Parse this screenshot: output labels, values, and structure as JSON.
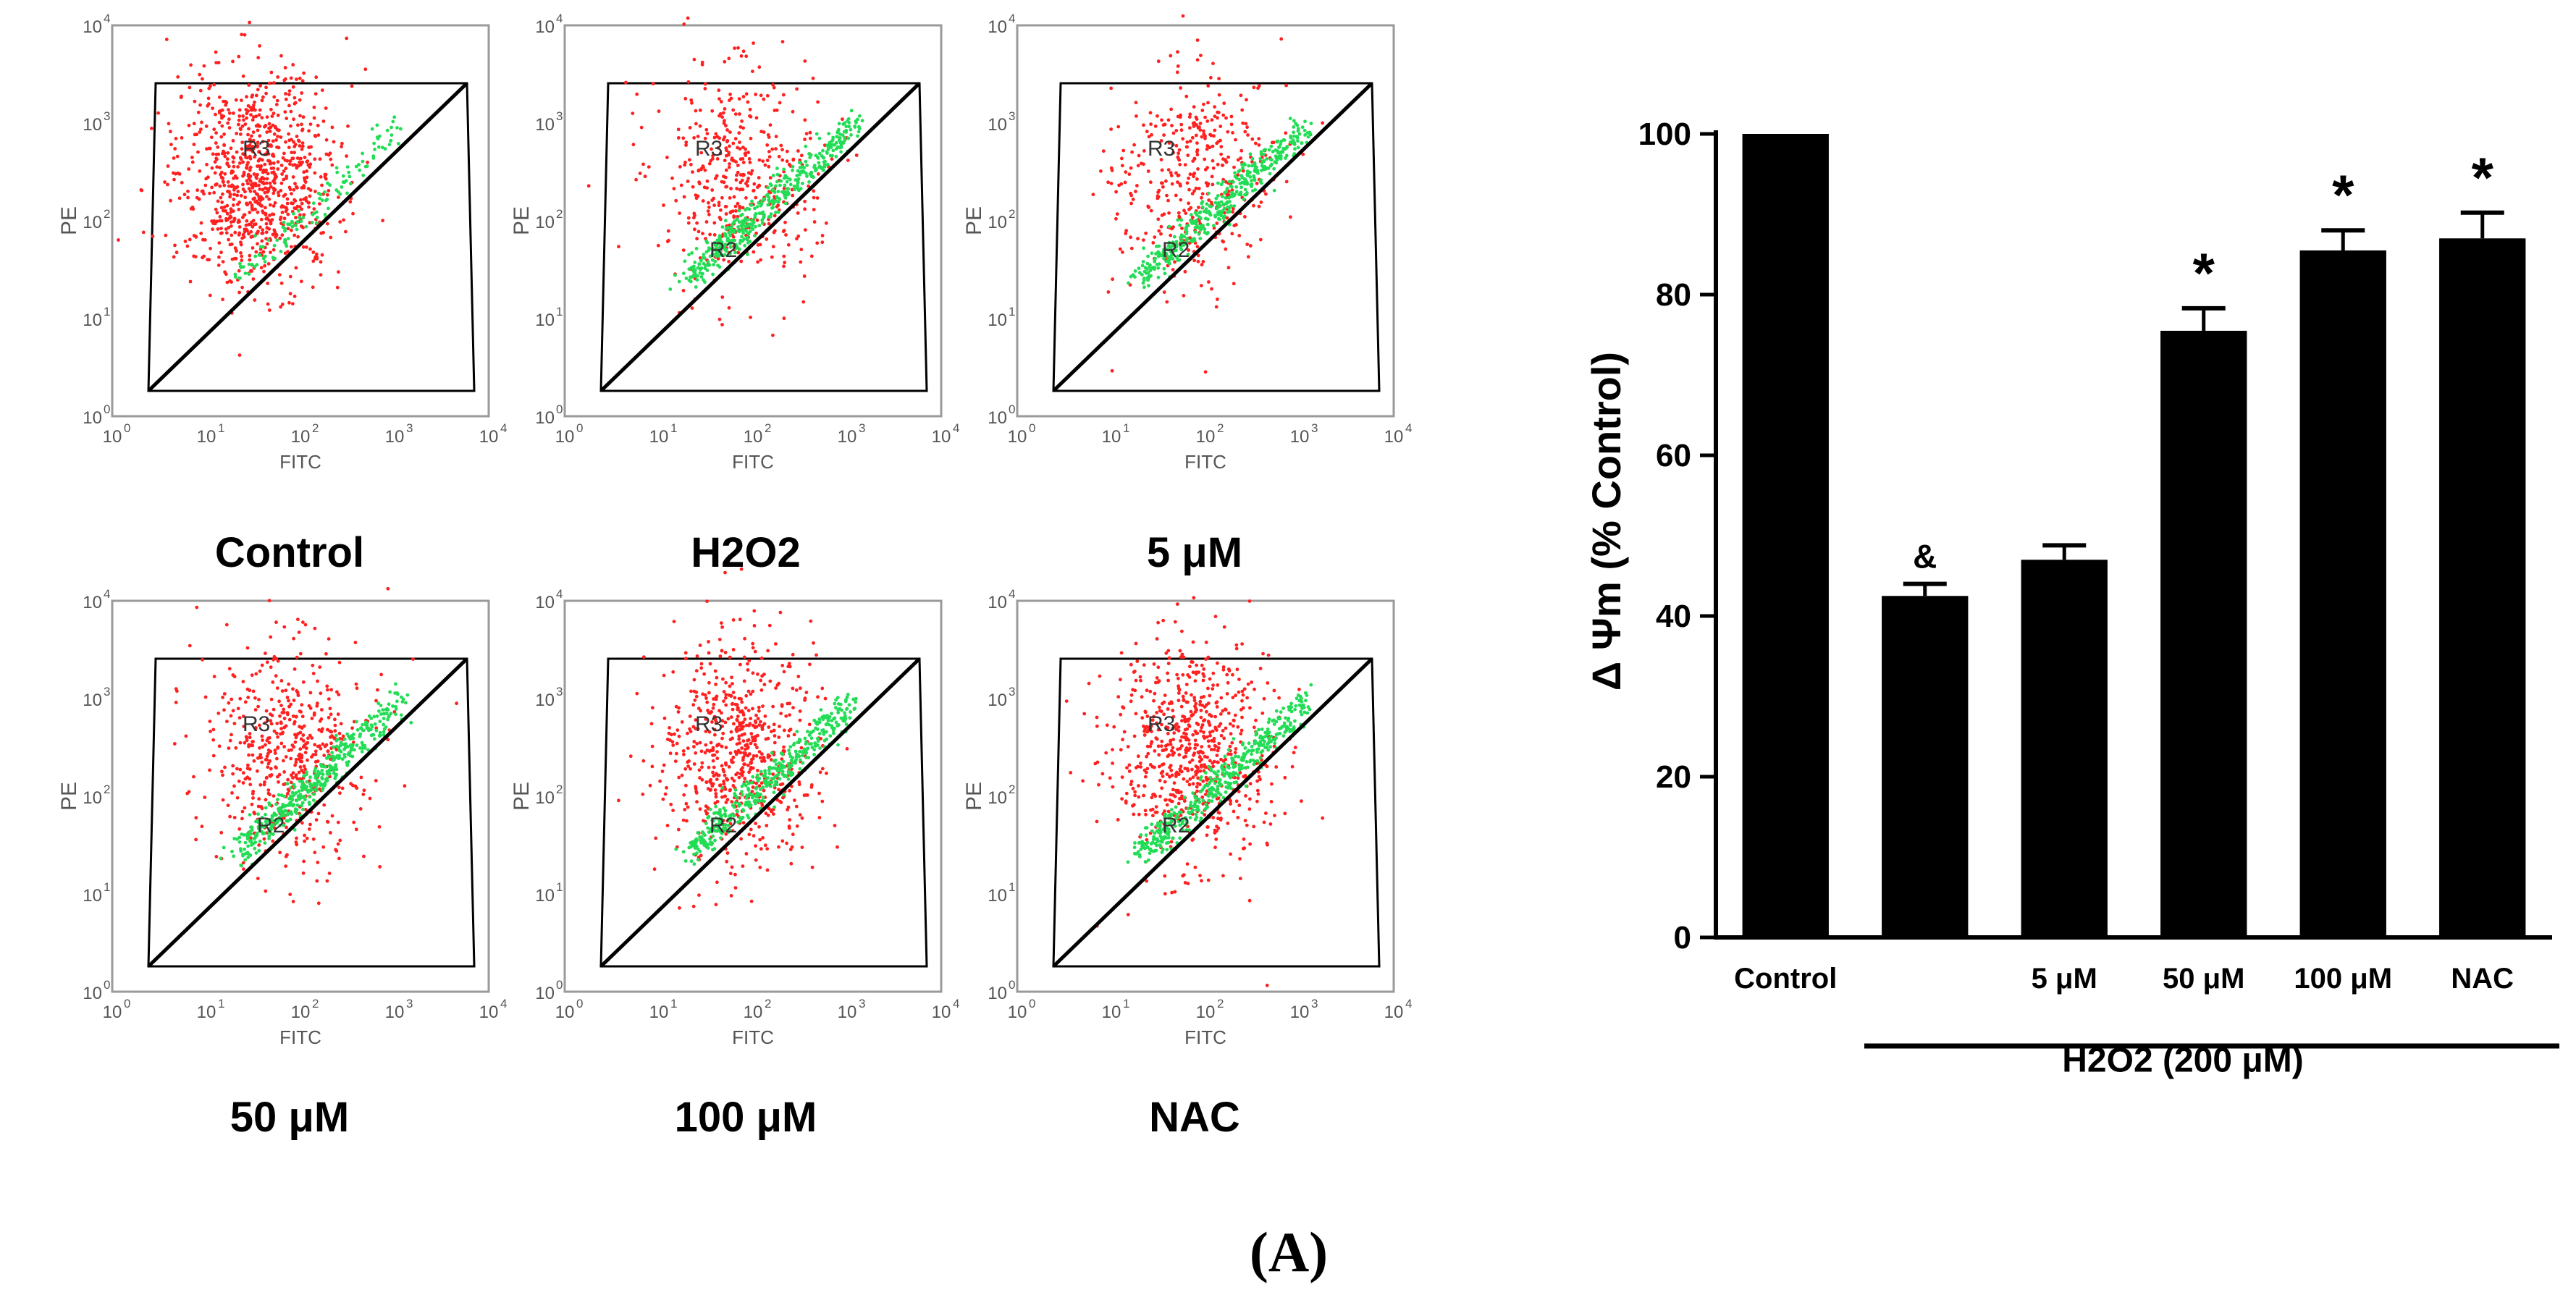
{
  "flow_panels": [
    {
      "id": "control",
      "caption": "Control",
      "region_labels": [
        "R3"
      ],
      "xlabel": "FITC",
      "ylabel": "PE",
      "red": "#ff2020",
      "green": "#22dd55"
    },
    {
      "id": "h2o2",
      "caption": "H2O2",
      "region_labels": [
        "R3",
        "R2"
      ],
      "xlabel": "FITC",
      "ylabel": "PE",
      "red": "#ff2020",
      "green": "#22dd55"
    },
    {
      "id": "5um",
      "caption": "5 μM",
      "region_labels": [
        "R3",
        "R2"
      ],
      "xlabel": "FITC",
      "ylabel": "PE",
      "red": "#ff2020",
      "green": "#22dd55"
    },
    {
      "id": "50um",
      "caption": "50 μM",
      "region_labels": [
        "R3",
        "R2"
      ],
      "xlabel": "FITC",
      "ylabel": "PE",
      "red": "#ff2020",
      "green": "#22dd55"
    },
    {
      "id": "100um",
      "caption": "100 μM",
      "region_labels": [
        "R3",
        "R2"
      ],
      "xlabel": "FITC",
      "ylabel": "PE",
      "red": "#ff2020",
      "green": "#22dd55"
    },
    {
      "id": "nac",
      "caption": "NAC",
      "region_labels": [
        "R3",
        "R2"
      ],
      "xlabel": "FITC",
      "ylabel": "PE",
      "red": "#ff2020",
      "green": "#22dd55"
    }
  ],
  "chart_data": {
    "type": "bar",
    "title": "",
    "ylabel": "Δ Ψm (% Control)",
    "xlabel": "",
    "categories": [
      "Control",
      "",
      "5 μM",
      "50 μM",
      "100 μM",
      "NAC"
    ],
    "values": [
      100,
      42.5,
      47,
      75.5,
      85.5,
      87
    ],
    "errors": [
      0,
      1.5,
      1.8,
      2.8,
      2.5,
      3.2
    ],
    "annotations": [
      "",
      "&",
      "",
      "*",
      "*",
      "*"
    ],
    "ylim": [
      0,
      100
    ],
    "yticks": [
      0,
      20,
      40,
      60,
      80,
      100
    ],
    "group_label": "H2O2 (200 μM)",
    "bar_color": "#000000"
  },
  "panel_label": "(A)",
  "axis_ticks": [
    "10",
    "0",
    "10",
    "1",
    "10",
    "2",
    "10",
    "3",
    "10",
    "4"
  ]
}
